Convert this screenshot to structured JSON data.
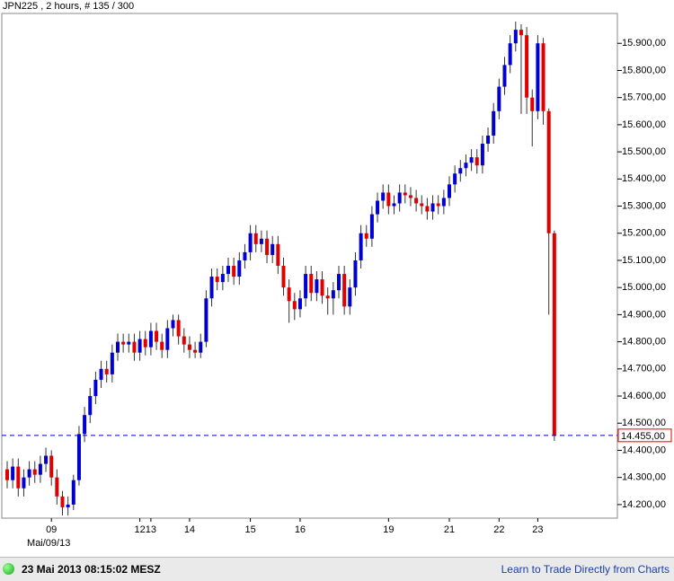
{
  "chart_data": {
    "type": "candlestick",
    "title": "JPN225 , 2 hours, # 135 / 300",
    "categories": [
      null,
      null,
      null,
      null,
      null,
      null,
      null,
      null,
      "09",
      null,
      null,
      null,
      null,
      null,
      null,
      null,
      null,
      null,
      null,
      null,
      null,
      null,
      null,
      null,
      "12",
      null,
      "13",
      null,
      null,
      null,
      null,
      null,
      null,
      "14",
      null,
      null,
      null,
      null,
      null,
      null,
      null,
      null,
      null,
      null,
      "15",
      null,
      null,
      null,
      null,
      null,
      null,
      null,
      null,
      "16",
      null,
      null,
      null,
      null,
      null,
      null,
      null,
      null,
      null,
      null,
      null,
      null,
      null,
      null,
      null,
      "19",
      null,
      null,
      null,
      null,
      null,
      null,
      null,
      null,
      null,
      null,
      "21",
      null,
      null,
      null,
      null,
      null,
      null,
      null,
      null,
      "22",
      null,
      null,
      null,
      null,
      null,
      null,
      "23",
      null,
      null,
      null
    ],
    "date_label": "Mai/09/13",
    "open": [
      14330,
      14290,
      14340,
      14260,
      14300,
      14330,
      14310,
      14350,
      14380,
      14300,
      14230,
      14190,
      14200,
      14290,
      14460,
      14530,
      14600,
      14660,
      14700,
      14680,
      14760,
      14800,
      14790,
      14800,
      14760,
      14810,
      14780,
      14840,
      14800,
      14770,
      14850,
      14880,
      14820,
      14790,
      14770,
      14760,
      14800,
      14960,
      15040,
      15020,
      15050,
      15080,
      15040,
      15100,
      15130,
      15200,
      15160,
      15180,
      15120,
      15160,
      15080,
      15000,
      14950,
      14920,
      14960,
      15050,
      14980,
      15030,
      14970,
      14960,
      14990,
      15050,
      14930,
      15000,
      15100,
      15200,
      15180,
      15270,
      15320,
      15350,
      15300,
      15310,
      15350,
      15340,
      15330,
      15310,
      15300,
      15280,
      15310,
      15300,
      15330,
      15380,
      15420,
      15440,
      15460,
      15480,
      15450,
      15530,
      15560,
      15650,
      15740,
      15820,
      15900,
      15950,
      15930,
      15700,
      15650,
      15900,
      15650,
      15200
    ],
    "high": [
      14360,
      14370,
      14370,
      14330,
      14360,
      14360,
      14380,
      14410,
      14400,
      14330,
      14250,
      14230,
      14310,
      14490,
      14560,
      14630,
      14690,
      14730,
      14730,
      14790,
      14830,
      14830,
      14830,
      14830,
      14840,
      14840,
      14870,
      14870,
      14830,
      14880,
      14900,
      14900,
      14850,
      14820,
      14800,
      14830,
      14990,
      15070,
      15070,
      15080,
      15110,
      15110,
      15130,
      15160,
      15230,
      15230,
      15210,
      15210,
      15190,
      15190,
      15110,
      15030,
      14980,
      14990,
      15080,
      15080,
      15060,
      15060,
      15000,
      15020,
      15080,
      15080,
      15030,
      15130,
      15230,
      15230,
      15300,
      15350,
      15380,
      15380,
      15340,
      15380,
      15380,
      15370,
      15360,
      15340,
      15330,
      15340,
      15340,
      15360,
      15410,
      15450,
      15470,
      15490,
      15510,
      15510,
      15560,
      15590,
      15680,
      15770,
      15850,
      15930,
      15980,
      15970,
      15960,
      15730,
      15930,
      15920,
      15660,
      15210
    ],
    "low": [
      14260,
      14260,
      14230,
      14230,
      14270,
      14280,
      14280,
      14320,
      14270,
      14200,
      14160,
      14160,
      14180,
      14270,
      14430,
      14500,
      14570,
      14630,
      14650,
      14650,
      14730,
      14760,
      14760,
      14730,
      14730,
      14750,
      14750,
      14770,
      14740,
      14740,
      14820,
      14790,
      14760,
      14740,
      14740,
      14740,
      14780,
      14930,
      14990,
      14990,
      15020,
      15010,
      15010,
      15070,
      15100,
      15130,
      15130,
      15090,
      15090,
      15050,
      14970,
      14870,
      14880,
      14890,
      14930,
      14950,
      14950,
      14940,
      14900,
      14900,
      14960,
      14900,
      14900,
      14970,
      15070,
      15150,
      15150,
      15240,
      15290,
      15270,
      15270,
      15280,
      15310,
      15300,
      15280,
      15270,
      15250,
      15250,
      15270,
      15270,
      15300,
      15350,
      15390,
      15410,
      15430,
      15420,
      15420,
      15500,
      15530,
      15620,
      15710,
      15790,
      15870,
      15640,
      15640,
      15520,
      15620,
      15600,
      14900,
      14435
    ],
    "close": [
      14290,
      14340,
      14260,
      14300,
      14330,
      14310,
      14350,
      14380,
      14300,
      14230,
      14190,
      14200,
      14290,
      14460,
      14530,
      14600,
      14660,
      14700,
      14680,
      14760,
      14800,
      14790,
      14800,
      14760,
      14810,
      14780,
      14840,
      14800,
      14770,
      14850,
      14880,
      14820,
      14790,
      14770,
      14760,
      14800,
      14960,
      15040,
      15020,
      15050,
      15080,
      15040,
      15100,
      15130,
      15200,
      15160,
      15180,
      15120,
      15160,
      15080,
      15000,
      14950,
      14920,
      14960,
      15050,
      14980,
      15030,
      14970,
      14960,
      14990,
      15050,
      14930,
      15000,
      15100,
      15200,
      15180,
      15270,
      15320,
      15350,
      15300,
      15310,
      15350,
      15340,
      15330,
      15310,
      15300,
      15280,
      15310,
      15300,
      15330,
      15380,
      15420,
      15440,
      15460,
      15480,
      15450,
      15530,
      15560,
      15650,
      15740,
      15820,
      15900,
      15950,
      15930,
      15700,
      15650,
      15900,
      15650,
      15200,
      14455
    ],
    "up_color": "#0000d0",
    "down_color": "#e00000",
    "ylim": [
      14150,
      16010
    ],
    "yticks": [
      {
        "value": 14200,
        "label": "14.200,00"
      },
      {
        "value": 14300,
        "label": "14.300,00"
      },
      {
        "value": 14400,
        "label": "14.400,00"
      },
      {
        "value": 14500,
        "label": "14.500,00"
      },
      {
        "value": 14600,
        "label": "14.600,00"
      },
      {
        "value": 14700,
        "label": "14.700,00"
      },
      {
        "value": 14800,
        "label": "14.800,00"
      },
      {
        "value": 14900,
        "label": "14.900,00"
      },
      {
        "value": 15000,
        "label": "15.000,00"
      },
      {
        "value": 15100,
        "label": "15.100,00"
      },
      {
        "value": 15200,
        "label": "15.200,00"
      },
      {
        "value": 15300,
        "label": "15.300,00"
      },
      {
        "value": 15400,
        "label": "15.400,00"
      },
      {
        "value": 15500,
        "label": "15.500,00"
      },
      {
        "value": 15600,
        "label": "15.600,00"
      },
      {
        "value": 15700,
        "label": "15.700,00"
      },
      {
        "value": 15800,
        "label": "15.800,00"
      },
      {
        "value": 15900,
        "label": "15.900,00"
      }
    ],
    "last_price": {
      "value": 14455,
      "label": "14.455,00"
    }
  },
  "footer": {
    "timestamp": "23 Mai 2013 08:15:02 MESZ",
    "link": "Learn to Trade Directly from Charts"
  }
}
